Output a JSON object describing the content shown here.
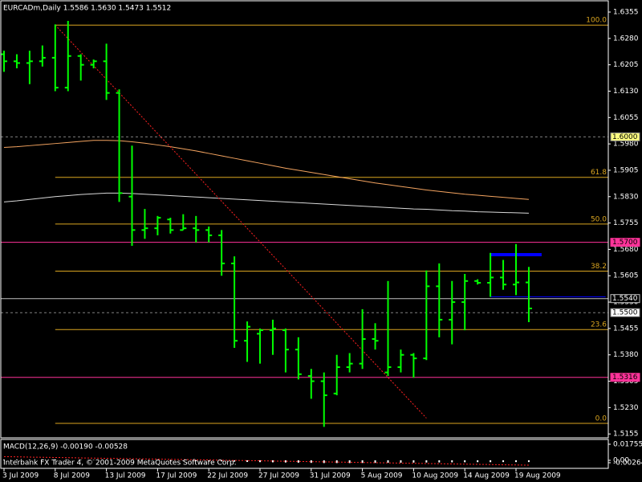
{
  "chart_data": {
    "type": "ohlc",
    "title": "EURCADm,Daily  1.5586 1.5630 1.5473 1.5512",
    "color": "#00ff00",
    "categories": [
      "3 Jul 2009",
      null,
      null,
      null,
      "8 Jul 2009",
      null,
      null,
      null,
      "13 Jul 2009",
      null,
      null,
      null,
      "17 Jul 2009",
      null,
      null,
      null,
      "22 Jul 2009",
      null,
      null,
      null,
      "27 Jul 2009",
      null,
      null,
      null,
      "31 Jul 2009",
      null,
      null,
      null,
      "5 Aug 2009",
      null,
      null,
      null,
      "10 Aug 2009",
      null,
      null,
      null,
      "14 Aug 2009",
      null,
      null,
      null,
      "19 Aug 2009",
      null
    ],
    "open": [
      1.6235,
      1.6215,
      1.621,
      1.6215,
      1.6225,
      1.614,
      1.623,
      1.6205,
      1.6215,
      1.6125,
      1.583,
      1.5735,
      1.574,
      1.5765,
      1.5735,
      1.574,
      1.5735,
      1.572,
      1.564,
      1.542,
      1.544,
      1.545,
      1.545,
      1.5395,
      1.532,
      1.5305,
      1.527,
      1.5345,
      1.5355,
      1.5425,
      1.533,
      1.5345,
      1.538,
      1.537,
      1.5575,
      1.548,
      1.553,
      1.559,
      1.5585,
      1.56,
      1.558,
      1.5586
    ],
    "high": [
      1.6245,
      1.6235,
      1.6245,
      1.626,
      1.632,
      1.633,
      1.6235,
      1.622,
      1.6265,
      1.6135,
      1.5975,
      1.5795,
      1.5775,
      1.577,
      1.578,
      1.5775,
      1.5745,
      1.5735,
      1.566,
      1.5475,
      1.5455,
      1.548,
      1.5455,
      1.543,
      1.534,
      1.533,
      1.538,
      1.5385,
      1.551,
      1.547,
      1.559,
      1.5395,
      1.5385,
      1.562,
      1.564,
      1.559,
      1.561,
      1.5595,
      1.567,
      1.565,
      1.5695,
      1.563
    ],
    "low": [
      1.6185,
      1.6195,
      1.615,
      1.62,
      1.613,
      1.613,
      1.616,
      1.6195,
      1.6105,
      1.5815,
      1.569,
      1.571,
      1.572,
      1.5725,
      1.5735,
      1.57,
      1.57,
      1.5605,
      1.54,
      1.536,
      1.5355,
      1.538,
      1.533,
      1.531,
      1.5255,
      1.5175,
      1.5265,
      1.533,
      1.534,
      1.5395,
      1.532,
      1.533,
      1.5315,
      1.5365,
      1.543,
      1.541,
      1.545,
      1.558,
      1.5545,
      1.5565,
      1.555,
      1.5473
    ],
    "close": [
      1.6215,
      1.621,
      1.6215,
      1.6225,
      1.614,
      1.623,
      1.6205,
      1.6215,
      1.6125,
      1.584,
      1.5735,
      1.574,
      1.577,
      1.5735,
      1.574,
      1.5735,
      1.572,
      1.564,
      1.542,
      1.546,
      1.545,
      1.5455,
      1.5395,
      1.5325,
      1.5305,
      1.5265,
      1.5345,
      1.5355,
      1.5425,
      1.542,
      1.5345,
      1.538,
      1.537,
      1.5575,
      1.548,
      1.553,
      1.559,
      1.5585,
      1.56,
      1.558,
      1.5586,
      1.5512
    ],
    "ylim": [
      1.5144,
      1.6387
    ],
    "yticks": [
      1.6355,
      {
        "value": 1.628,
        "label": "1.6280"
      },
      1.6205,
      {
        "value": 1.613,
        "label": "1.6130"
      },
      1.6055,
      {
        "value": 1.598,
        "label": "1.5980"
      },
      1.5905,
      {
        "value": 1.583,
        "label": "1.5830"
      },
      1.5755,
      {
        "value": 1.568,
        "label": "1.5680"
      },
      1.5605,
      {
        "value": 1.553,
        "label": "1.5530"
      },
      1.5455,
      {
        "value": 1.538,
        "label": "1.5380"
      },
      1.5305,
      {
        "value": 1.523,
        "label": "1.5230"
      },
      1.5155
    ],
    "overlays": [
      {
        "color": "#f4a460",
        "values": [
          1.597,
          1.5972,
          1.5975,
          1.5978,
          1.5981,
          1.5984,
          1.5987,
          1.599,
          1.599,
          1.5989,
          1.5986,
          1.5982,
          1.5977,
          1.5972,
          1.5966,
          1.596,
          1.5953,
          1.5946,
          1.5939,
          1.5932,
          1.5925,
          1.5918,
          1.5911,
          1.5905,
          1.5899,
          1.5893,
          1.5887,
          1.5881,
          1.5875,
          1.5869,
          1.5864,
          1.5859,
          1.5854,
          1.5849,
          1.5845,
          1.5841,
          1.5837,
          1.5834,
          1.5831,
          1.5828,
          1.5825,
          1.5822
        ]
      },
      {
        "color": "#d8d8d8",
        "values": [
          1.5815,
          1.5818,
          1.5822,
          1.5826,
          1.583,
          1.5833,
          1.5836,
          1.5838,
          1.584,
          1.584,
          1.5839,
          1.5837,
          1.5835,
          1.5833,
          1.5831,
          1.5829,
          1.5827,
          1.5825,
          1.5823,
          1.5821,
          1.5819,
          1.5817,
          1.5815,
          1.5813,
          1.5811,
          1.5809,
          1.5807,
          1.5805,
          1.5803,
          1.5801,
          1.5799,
          1.5797,
          1.5795,
          1.5794,
          1.5792,
          1.579,
          1.5789,
          1.5787,
          1.5786,
          1.5785,
          1.5784,
          1.5783
        ]
      }
    ],
    "fib": {
      "color": "#daa520",
      "start": 4,
      "levels": [
        {
          "value": 1.6318,
          "label": "100.0"
        },
        {
          "value": 1.5885,
          "label": "61.8"
        },
        {
          "value": 1.5752,
          "label": "50.0"
        },
        {
          "value": 1.5618,
          "label": "38.2"
        },
        {
          "value": 1.5452,
          "label": "23.6"
        },
        {
          "value": 1.5185,
          "label": "0.0"
        }
      ]
    },
    "hlines": [
      {
        "value": 1.6,
        "label": "1.6000",
        "color": "#808080",
        "box": "#ffff80",
        "dash": true
      },
      {
        "value": 1.57,
        "label": "1.5700",
        "color": "#ff3399",
        "box": "#ff3399",
        "dash": false
      },
      {
        "value": 1.5316,
        "label": "1.5316",
        "color": "#ff3399",
        "box": "#ff3399",
        "dash": false
      },
      {
        "value": 1.554,
        "label": "1.5540",
        "color": "#c0c0c0",
        "box": "#000000",
        "dash": false
      },
      {
        "value": 1.55,
        "label": "1.5500",
        "color": "#808080",
        "box": "#ffffff",
        "dash": true
      }
    ],
    "trendline": {
      "color": "#ff2020",
      "x": [
        4,
        33
      ],
      "y": [
        1.6318,
        1.52
      ]
    },
    "segments": [
      {
        "color": "#0000ff",
        "width": 4,
        "x": [
          38,
          42
        ],
        "y": 1.5665
      },
      {
        "color": "#0000ff",
        "width": 1,
        "x": [
          38,
          47
        ],
        "y": 1.5545
      }
    ],
    "macd": {
      "title": "MACD(12,26,9) -0.00190 -0.00528",
      "ylim": [
        -0.00878,
        0.02282
      ],
      "yticks": [
        0.01755,
        {
          "value": 0,
          "label": "0.00"
        },
        -0.00264
      ],
      "hist_color": "#ffffff",
      "signal_color": "#ff2020",
      "hist": [
        0.0008,
        0.0007,
        0.0006,
        0.0006,
        0.0005,
        0.0005,
        0.0004,
        0.0004,
        0.0003,
        0.0002,
        0.0001,
        0.0,
        -0.0002,
        -0.0004,
        -0.0006,
        -0.0008,
        -0.001,
        -0.0012,
        -0.0015,
        -0.0018,
        -0.002,
        -0.0022,
        -0.0024,
        -0.0026,
        -0.0028,
        -0.003,
        -0.003,
        -0.003,
        -0.0029,
        -0.0028,
        -0.0027,
        -0.0026,
        -0.0025,
        -0.0024,
        -0.0023,
        -0.0022,
        -0.0021,
        -0.002,
        -0.002,
        -0.0019,
        -0.0019,
        -0.0019
      ],
      "signal": [
        0.004,
        0.0038,
        0.0035,
        0.0033,
        0.0031,
        0.0029,
        0.0026,
        0.0024,
        0.0022,
        0.002,
        0.0017,
        0.0015,
        0.0013,
        0.001,
        0.0008,
        0.0006,
        0.0004,
        0.0001,
        -0.0001,
        -0.0003,
        -0.0005,
        -0.0008,
        -0.001,
        -0.0012,
        -0.0015,
        -0.0017,
        -0.0019,
        -0.0021,
        -0.0024,
        -0.0026,
        -0.0028,
        -0.0031,
        -0.0033,
        -0.0035,
        -0.0037,
        -0.004,
        -0.0042,
        -0.0044,
        -0.0046,
        -0.0049,
        -0.0051,
        -0.0053
      ]
    },
    "footer": "Interbank FX Trader 4, © 2001-2009 MetaQuotes Software Corp."
  }
}
